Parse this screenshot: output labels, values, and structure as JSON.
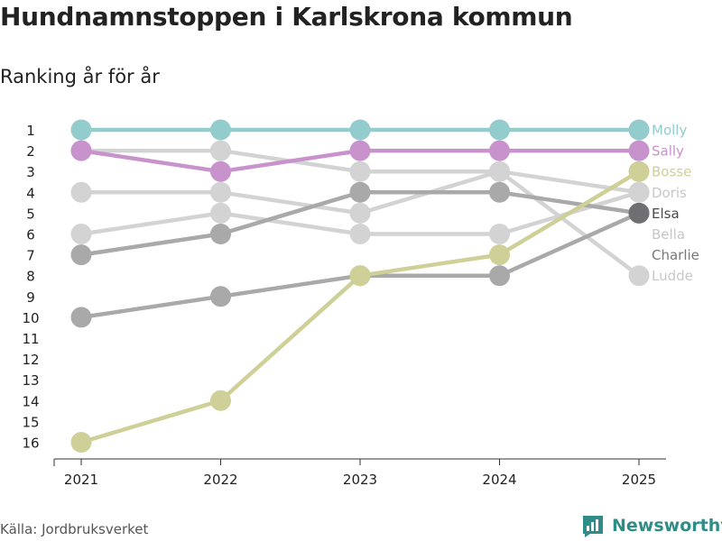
{
  "title": "Hundnamnstoppen i Karlskrona kommun",
  "subtitle": "Ranking år för år",
  "source": "Källa: Jordbruksverket",
  "brand": "Newsworthy",
  "brand_color": "#2f8c86",
  "chart_data": {
    "type": "line",
    "title": "Hundnamnstoppen i Karlskrona kommun",
    "subtitle": "Ranking år för år",
    "xlabel": "",
    "ylabel": "",
    "x": [
      "2021",
      "2022",
      "2023",
      "2024",
      "2025"
    ],
    "yticks": [
      1,
      2,
      3,
      4,
      5,
      6,
      7,
      8,
      9,
      10,
      11,
      12,
      13,
      14,
      15,
      16
    ],
    "ylim": [
      16,
      1
    ],
    "y_inverted": true,
    "series": [
      {
        "name": "Doris",
        "color": "#d3d3d3",
        "values": [
          4,
          4,
          5,
          3,
          4
        ]
      },
      {
        "name": "Bella",
        "color": "#d3d3d3",
        "values": [
          6,
          5,
          6,
          6,
          4
        ]
      },
      {
        "name": "Ludde",
        "color": "#d3d3d3",
        "values": [
          2,
          2,
          3,
          3,
          8
        ]
      },
      {
        "name": "Charlie",
        "color": "#a9a9a9",
        "values": [
          7,
          6,
          4,
          4,
          5
        ]
      },
      {
        "name": "Elsa",
        "color": "#a9a9a9",
        "values": [
          10,
          9,
          8,
          8,
          5
        ]
      },
      {
        "name": "Bosse",
        "color": "#cfcf98",
        "values": [
          16,
          14,
          8,
          7,
          3
        ]
      },
      {
        "name": "Sally",
        "color": "#c893cc",
        "values": [
          2,
          3,
          2,
          2,
          2
        ]
      },
      {
        "name": "Molly",
        "color": "#93cccc",
        "values": [
          1,
          1,
          1,
          1,
          1
        ]
      }
    ],
    "end_labels": [
      {
        "name": "Molly",
        "rank": 1,
        "color": "#93cccc"
      },
      {
        "name": "Sally",
        "rank": 2,
        "color": "#c893cc"
      },
      {
        "name": "Bosse",
        "rank": 3,
        "color": "#cfcf98"
      },
      {
        "name": "Doris",
        "rank": 4,
        "color": "#c8c8c8"
      },
      {
        "name": "Elsa",
        "rank": 5,
        "color": "#4a4a4a"
      },
      {
        "name": "Bella",
        "rank": 6,
        "color": "#c8c8c8"
      },
      {
        "name": "Charlie",
        "rank": 7,
        "color": "#777777"
      },
      {
        "name": "Ludde",
        "rank": 8,
        "color": "#c8c8c8"
      }
    ],
    "end_marker_color_elsa": "#6e6e73"
  }
}
